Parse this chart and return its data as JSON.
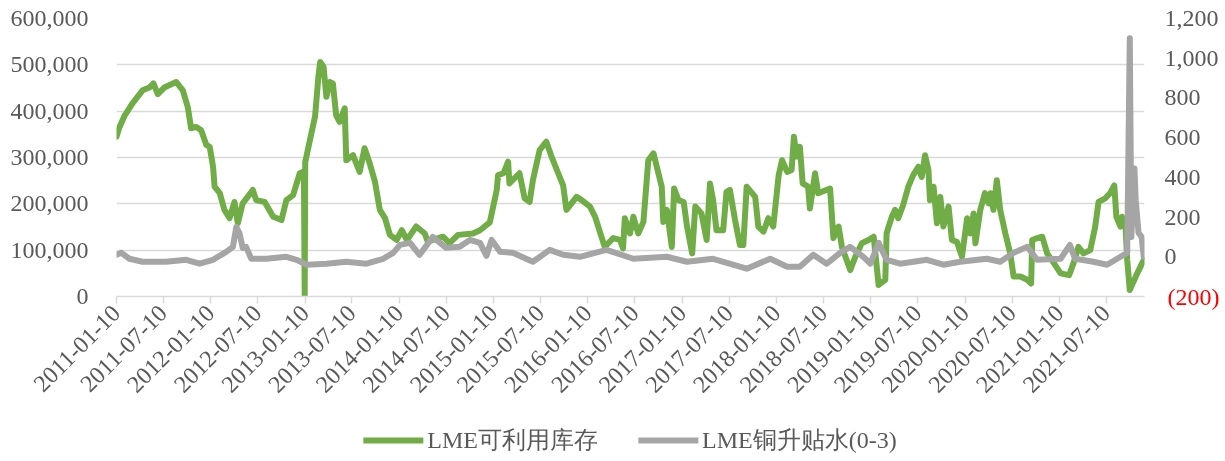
{
  "chart_data": {
    "type": "line",
    "xlim": [
      "2011-01-10",
      "2021-12-05"
    ],
    "xticks": [
      "2011-01-10",
      "2011-07-10",
      "2012-01-10",
      "2012-07-10",
      "2013-01-10",
      "2013-07-10",
      "2014-01-10",
      "2014-07-10",
      "2015-01-10",
      "2015-07-10",
      "2016-01-10",
      "2016-07-10",
      "2017-01-10",
      "2017-07-10",
      "2018-01-10",
      "2018-07-10",
      "2019-01-10",
      "2019-07-10",
      "2020-01-10",
      "2020-07-10",
      "2021-01-10",
      "2021-07-10"
    ],
    "ylim": [
      0,
      600000
    ],
    "yticks": [
      0,
      {
        "value": 100000,
        "label": "100,000"
      },
      {
        "value": 200000,
        "label": "200,000"
      },
      {
        "value": 300000,
        "label": "300,000"
      },
      {
        "value": 400000,
        "label": "400,000"
      },
      {
        "value": 500000,
        "label": "500,000"
      },
      {
        "value": 600000,
        "label": "600,000"
      }
    ],
    "y2lim": [
      -200,
      1200
    ],
    "y2ticks": [
      {
        "value": -200,
        "label": "(200)"
      },
      0,
      200,
      400,
      600,
      800,
      {
        "value": 1000,
        "label": "1,000"
      },
      {
        "value": 1200,
        "label": "1,200"
      }
    ],
    "grid": "y",
    "legend": "bottom",
    "series": [
      {
        "name": "LME可利用库存",
        "color": "#70ad47",
        "x": [
          "2011-01-10",
          "2011-01-22",
          "2011-02-11",
          "2011-03-13",
          "2011-04-21",
          "2011-05-17",
          "2011-06-02",
          "2011-06-19",
          "2011-07-14",
          "2011-08-29",
          "2011-09-24",
          "2011-10-13",
          "2011-10-26",
          "2011-11-15",
          "2011-12-04",
          "2011-12-24",
          "2012-01-06",
          "2012-01-19",
          "2012-01-25",
          "2012-02-14",
          "2012-03-03",
          "2012-03-23",
          "2012-04-11",
          "2012-04-24",
          "2012-05-13",
          "2012-06-21",
          "2012-07-04",
          "2012-08-06",
          "2012-09-08",
          "2012-10-10",
          "2012-10-29",
          "2012-11-24",
          "2012-12-20",
          "2013-01-05",
          "2013-01-08",
          "2013-01-10",
          "2013-01-28",
          "2013-02-17",
          "2013-03-02",
          "2013-03-09",
          "2013-03-22",
          "2013-04-02",
          "2013-04-15",
          "2013-04-27",
          "2013-05-10",
          "2013-05-23",
          "2013-06-12",
          "2013-06-18",
          "2013-07-14",
          "2013-08-09",
          "2013-08-28",
          "2013-09-17",
          "2013-10-07",
          "2013-10-26",
          "2013-11-15",
          "2013-12-04",
          "2013-12-30",
          "2014-01-19",
          "2014-02-08",
          "2014-03-16",
          "2014-04-18",
          "2014-04-30",
          "2014-05-19",
          "2014-06-28",
          "2014-07-23",
          "2014-08-25",
          "2014-10-22",
          "2014-11-18",
          "2014-12-26",
          "2015-01-22",
          "2015-01-27",
          "2015-02-17",
          "2015-03-07",
          "2015-03-12",
          "2015-04-20",
          "2015-05-10",
          "2015-05-29",
          "2015-06-11",
          "2015-07-07",
          "2015-08-02",
          "2015-08-22",
          "2015-09-17",
          "2015-10-06",
          "2015-10-19",
          "2015-11-27",
          "2015-12-17",
          "2016-01-18",
          "2016-02-07",
          "2016-03-15",
          "2016-04-17",
          "2016-05-13",
          "2016-05-25",
          "2016-06-01",
          "2016-06-21",
          "2016-07-04",
          "2016-07-23",
          "2016-08-12",
          "2016-08-31",
          "2016-09-20",
          "2016-10-22",
          "2016-10-28",
          "2016-11-11",
          "2016-11-30",
          "2016-12-09",
          "2016-12-26",
          "2017-01-15",
          "2017-01-28",
          "2017-02-17",
          "2017-03-01",
          "2017-03-25",
          "2017-04-14",
          "2017-04-27",
          "2017-05-09",
          "2017-05-22",
          "2017-06-17",
          "2017-06-30",
          "2017-07-13",
          "2017-08-02",
          "2017-08-21",
          "2017-09-03",
          "2017-09-16",
          "2017-10-19",
          "2017-10-31",
          "2017-11-20",
          "2017-12-09",
          "2017-12-28",
          "2018-01-18",
          "2018-01-31",
          "2018-02-20",
          "2018-03-09",
          "2018-03-18",
          "2018-03-28",
          "2018-04-10",
          "2018-04-21",
          "2018-05-12",
          "2018-05-19",
          "2018-06-08",
          "2018-06-20",
          "2018-08-05",
          "2018-08-18",
          "2018-09-07",
          "2018-09-20",
          "2018-10-22",
          "2018-11-11",
          "2018-12-06",
          "2019-01-01",
          "2019-01-21",
          "2019-02-09",
          "2019-03-07",
          "2019-03-12",
          "2019-04-01",
          "2019-04-14",
          "2019-04-26",
          "2019-05-15",
          "2019-06-04",
          "2019-06-23",
          "2019-07-13",
          "2019-07-26",
          "2019-08-08",
          "2019-08-21",
          "2019-08-27",
          "2019-09-10",
          "2019-09-23",
          "2019-10-06",
          "2019-10-18",
          "2019-11-07",
          "2019-11-20",
          "2019-12-09",
          "2019-12-29",
          "2020-01-18",
          "2020-01-30",
          "2020-02-12",
          "2020-02-19",
          "2020-03-09",
          "2020-03-27",
          "2020-04-10",
          "2020-04-17",
          "2020-04-29",
          "2020-05-12",
          "2020-05-25",
          "2020-06-14",
          "2020-07-03",
          "2020-07-16",
          "2020-08-11",
          "2020-09-07",
          "2020-09-22",
          "2020-09-26",
          "2020-10-15",
          "2020-11-04",
          "2020-11-23",
          "2020-12-19",
          "2021-01-14",
          "2021-02-16",
          "2021-03-05",
          "2021-03-24",
          "2021-04-13",
          "2021-05-09",
          "2021-05-28",
          "2021-06-10",
          "2021-07-06",
          "2021-07-25",
          "2021-08-10",
          "2021-08-18",
          "2021-09-03",
          "2021-09-09",
          "2021-09-22",
          "2021-09-29",
          "2021-10-09",
          "2021-11-07",
          "2021-12-02"
        ],
        "values": [
          345000,
          366000,
          391000,
          417000,
          445000,
          451000,
          460000,
          437000,
          451000,
          463000,
          445000,
          409000,
          363000,
          366000,
          359000,
          327000,
          323000,
          280000,
          237000,
          223000,
          187000,
          169000,
          204000,
          158000,
          201000,
          230000,
          208000,
          204000,
          172000,
          165000,
          208000,
          219000,
          266000,
          270000,
          0,
          290000,
          337000,
          388000,
          474000,
          506000,
          496000,
          431000,
          463000,
          460000,
          391000,
          377000,
          406000,
          294000,
          305000,
          269000,
          320000,
          287000,
          248000,
          187000,
          169000,
          133000,
          122000,
          143000,
          122000,
          151000,
          136000,
          118000,
          122000,
          129000,
          115000,
          133000,
          136000,
          143000,
          160000,
          230000,
          262000,
          266000,
          291000,
          244000,
          266000,
          212000,
          204000,
          251000,
          316000,
          334000,
          302000,
          266000,
          240000,
          187000,
          215000,
          208000,
          194000,
          172000,
          107000,
          126000,
          122000,
          104000,
          169000,
          136000,
          172000,
          136000,
          161000,
          294000,
          309000,
          237000,
          161000,
          187000,
          107000,
          233000,
          208000,
          204000,
          151000,
          93000,
          194000,
          179000,
          122000,
          244000,
          208000,
          143000,
          143000,
          226000,
          230000,
          165000,
          111000,
          111000,
          237000,
          215000,
          151000,
          140000,
          169000,
          151000,
          262000,
          294000,
          269000,
          273000,
          345000,
          302000,
          323000,
          244000,
          237000,
          190000,
          266000,
          223000,
          233000,
          126000,
          151000,
          107000,
          57000,
          86000,
          115000,
          122000,
          129000,
          25000,
          36000,
          136000,
          172000,
          187000,
          169000,
          197000,
          237000,
          262000,
          280000,
          258000,
          305000,
          273000,
          208000,
          237000,
          158000,
          215000,
          151000,
          194000,
          122000,
          118000,
          86000,
          169000,
          136000,
          179000,
          115000,
          187000,
          223000,
          201000,
          223000,
          187000,
          251000,
          187000,
          136000,
          93000,
          43000,
          43000,
          36000,
          28000,
          122000,
          126000,
          129000,
          93000,
          72000,
          50000,
          46000,
          72000,
          107000,
          93000,
          100000,
          151000,
          204000,
          212000,
          223000,
          240000,
          172000,
          151000,
          172000,
          158000,
          79000,
          14000,
          50000,
          79000
        ]
      },
      {
        "name": "LME铜升贴水(0-3)",
        "color": "#a5a5a5",
        "axis": "y2",
        "x": [
          "2011-01-10",
          "2011-01-29",
          "2011-03-01",
          "2011-04-21",
          "2011-07-21",
          "2011-10-07",
          "2011-11-28",
          "2012-01-19",
          "2012-03-10",
          "2012-04-05",
          "2012-04-18",
          "2012-04-30",
          "2012-05-13",
          "2012-05-26",
          "2012-06-15",
          "2012-08-13",
          "2012-10-29",
          "2012-12-07",
          "2013-01-16",
          "2013-04-02",
          "2013-06-18",
          "2013-09-04",
          "2013-11-08",
          "2013-12-17",
          "2014-01-12",
          "2014-02-20",
          "2014-03-29",
          "2014-05-19",
          "2014-07-10",
          "2014-08-31",
          "2014-10-10",
          "2014-11-18",
          "2014-12-13",
          "2015-01-02",
          "2015-02-04",
          "2015-03-25",
          "2015-06-11",
          "2015-08-15",
          "2015-10-06",
          "2015-12-10",
          "2016-03-22",
          "2016-07-04",
          "2016-11-11",
          "2017-01-28",
          "2017-05-09",
          "2017-09-16",
          "2017-12-16",
          "2018-02-20",
          "2018-04-10",
          "2018-06-01",
          "2018-07-23",
          "2018-09-13",
          "2018-10-22",
          "2018-12-12",
          "2019-01-08",
          "2019-02-09",
          "2019-03-12",
          "2019-05-03",
          "2019-08-15",
          "2019-10-18",
          "2019-12-22",
          "2020-04-03",
          "2020-05-25",
          "2020-07-16",
          "2020-09-07",
          "2020-10-15",
          "2021-01-14",
          "2021-02-19",
          "2021-03-11",
          "2021-05-21",
          "2021-07-13",
          "2021-09-03",
          "2021-09-29",
          "2021-10-09",
          "2021-10-15",
          "2021-10-27",
          "2021-11-01",
          "2021-11-12",
          "2021-11-24",
          "2021-12-02"
        ],
        "values": [
          10,
          20,
          -10,
          -25,
          -25,
          -15,
          -35,
          -15,
          25,
          50,
          150,
          120,
          45,
          50,
          -10,
          -10,
          0,
          -15,
          -40,
          -35,
          -25,
          -35,
          -10,
          20,
          60,
          70,
          10,
          100,
          45,
          50,
          85,
          70,
          5,
          85,
          25,
          20,
          -25,
          35,
          10,
          0,
          35,
          -10,
          0,
          -25,
          -10,
          -60,
          -10,
          -50,
          -50,
          10,
          -35,
          20,
          50,
          0,
          -35,
          70,
          -15,
          -35,
          -15,
          -40,
          -25,
          -10,
          -25,
          20,
          50,
          -15,
          -10,
          60,
          -10,
          -25,
          -40,
          0,
          20,
          1100,
          100,
          445,
          285,
          120,
          100,
          0
        ]
      }
    ]
  }
}
